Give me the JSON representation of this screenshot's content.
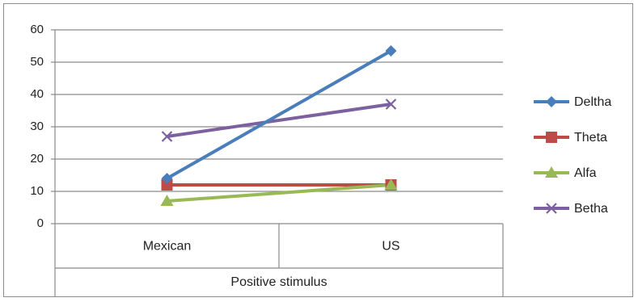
{
  "chart_data": {
    "type": "line",
    "title": "",
    "xlabel": "",
    "ylabel": "",
    "categories": [
      "Mexican",
      "US"
    ],
    "group_label": "Positive stimulus",
    "ylim": [
      0,
      60
    ],
    "yticks": [
      0,
      10,
      20,
      30,
      40,
      50,
      60
    ],
    "grid": true,
    "legend_position": "right",
    "series": [
      {
        "name": "Deltha",
        "values": [
          14,
          53.5
        ],
        "color": "#4a7ebb",
        "marker": "diamond"
      },
      {
        "name": "Theta",
        "values": [
          12,
          12
        ],
        "color": "#be4b48",
        "marker": "square"
      },
      {
        "name": "Alfa",
        "values": [
          7,
          12
        ],
        "color": "#98b954",
        "marker": "triangle"
      },
      {
        "name": "Betha",
        "values": [
          27,
          37
        ],
        "color": "#7d60a0",
        "marker": "x"
      }
    ]
  }
}
